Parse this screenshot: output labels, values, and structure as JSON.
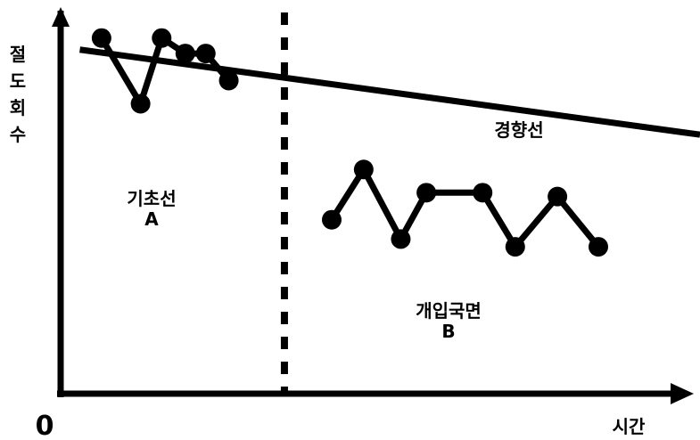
{
  "chart_data": {
    "type": "line",
    "ylabel": "절도회수",
    "xlabel": "시간",
    "origin_label": "0",
    "x_range": [
      0,
      100
    ],
    "y_range": [
      0,
      100
    ],
    "phase_divider_x": 35,
    "trend_label": "경향선",
    "trend_line": {
      "x": [
        3,
        100
      ],
      "y": [
        89,
        67
      ]
    },
    "phases": [
      {
        "label_line1": "기초선",
        "label_line2": "A"
      },
      {
        "label_line1": "개입국면",
        "label_line2": "B"
      }
    ],
    "series": [
      {
        "x": [
          6.4,
          12.5,
          15.8,
          19.5,
          22.7,
          26.3
        ],
        "y": [
          92,
          75,
          92,
          88,
          88,
          81
        ]
      },
      {
        "x": [
          42.4,
          47.4,
          53.2,
          57.2,
          66.0,
          71.1,
          77.7,
          84.1
        ],
        "y": [
          45,
          58,
          40,
          52,
          52,
          38,
          51,
          38
        ]
      }
    ],
    "colors": {
      "line": "#000000",
      "background": "#ffffff"
    }
  }
}
